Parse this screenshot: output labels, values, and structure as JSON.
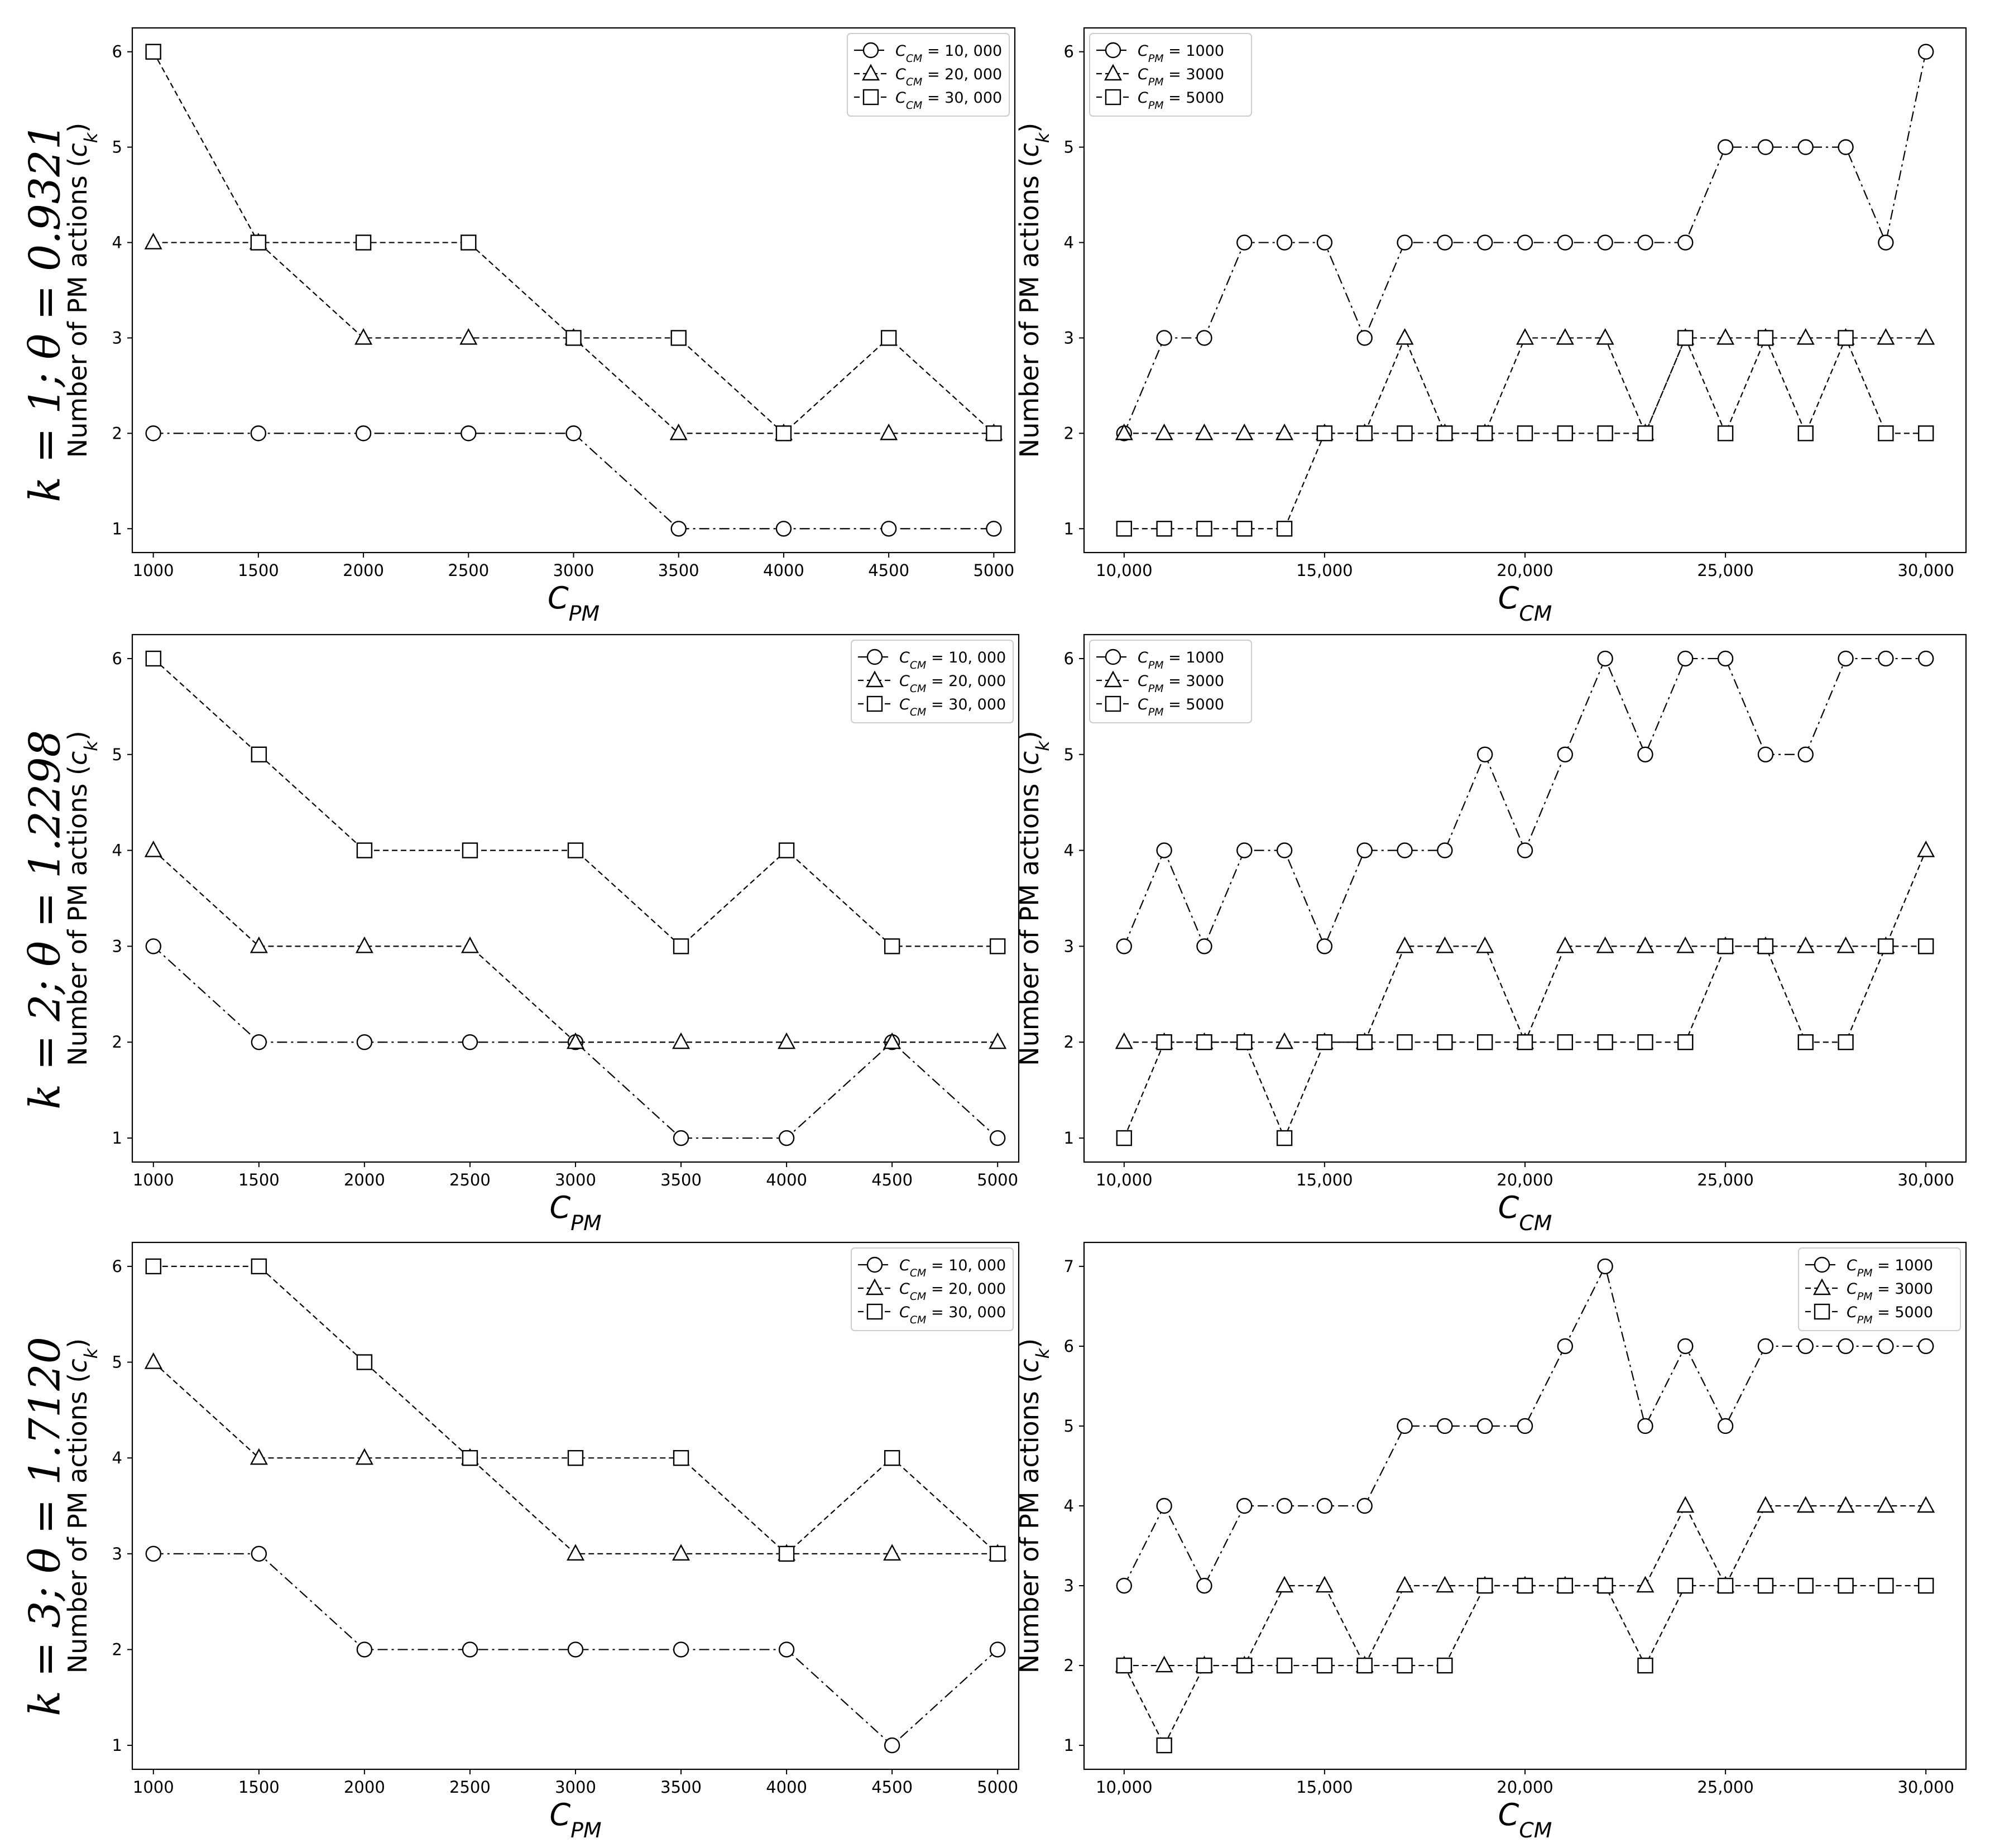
{
  "row_labels": [
    "k = 1; θ = 0.9321",
    "k = 2; θ = 1.2298",
    "k = 3; θ = 1.7120"
  ],
  "chart_data": [
    {
      "type": "line",
      "title": "",
      "xlabel": "C_PM",
      "ylabel": "Number of PM actions (c_k)",
      "x": [
        1000,
        1500,
        2000,
        2500,
        3000,
        3500,
        4000,
        4500,
        5000
      ],
      "xticks": [
        "1000",
        "1500",
        "2000",
        "2500",
        "3000",
        "3500",
        "4000",
        "4500",
        "5000"
      ],
      "xlim": [
        900,
        5100
      ],
      "ylim": [
        0.75,
        6.25
      ],
      "yticks": [
        1,
        2,
        3,
        4,
        5,
        6
      ],
      "grid": false,
      "legend_position": "top-right",
      "series": [
        {
          "name": "C_CM = 10, 000",
          "marker": "circle",
          "dash": "dashdot",
          "values": [
            2,
            2,
            2,
            2,
            2,
            1,
            1,
            1,
            1
          ]
        },
        {
          "name": "C_CM = 20, 000",
          "marker": "triangle",
          "dash": "dashed",
          "values": [
            4,
            4,
            3,
            3,
            3,
            2,
            2,
            2,
            2
          ]
        },
        {
          "name": "C_CM = 30, 000",
          "marker": "square",
          "dash": "dashed",
          "values": [
            6,
            4,
            4,
            4,
            3,
            3,
            2,
            3,
            2
          ]
        }
      ]
    },
    {
      "type": "line",
      "title": "",
      "xlabel": "C_CM",
      "ylabel": "Number of PM actions (c_k)",
      "x": [
        10000,
        11000,
        12000,
        13000,
        14000,
        15000,
        16000,
        17000,
        18000,
        19000,
        20000,
        21000,
        22000,
        23000,
        24000,
        25000,
        26000,
        27000,
        28000,
        29000,
        30000
      ],
      "xticks": [
        "10,000",
        "15,000",
        "20,000",
        "25,000",
        "30,000"
      ],
      "xlim": [
        9000,
        31000
      ],
      "ylim": [
        0.75,
        6.25
      ],
      "yticks": [
        1,
        2,
        3,
        4,
        5,
        6
      ],
      "grid": false,
      "legend_position": "top-left",
      "series": [
        {
          "name": "C_PM = 1000",
          "marker": "circle",
          "dash": "dashdot",
          "values": [
            2,
            3,
            3,
            4,
            4,
            4,
            3,
            4,
            4,
            4,
            4,
            4,
            4,
            4,
            4,
            5,
            5,
            5,
            5,
            4,
            6
          ]
        },
        {
          "name": "C_PM = 3000",
          "marker": "triangle",
          "dash": "dashed",
          "values": [
            2,
            2,
            2,
            2,
            2,
            2,
            2,
            3,
            2,
            2,
            3,
            3,
            3,
            2,
            3,
            3,
            3,
            3,
            3,
            3,
            3
          ]
        },
        {
          "name": "C_PM = 5000",
          "marker": "square",
          "dash": "dashed",
          "values": [
            1,
            1,
            1,
            1,
            1,
            2,
            2,
            2,
            2,
            2,
            2,
            2,
            2,
            2,
            3,
            2,
            3,
            2,
            3,
            2,
            2
          ]
        }
      ]
    },
    {
      "type": "line",
      "title": "",
      "xlabel": "C_PM",
      "ylabel": "Number of PM actions (c_k)",
      "x": [
        1000,
        1500,
        2000,
        2500,
        3000,
        3500,
        4000,
        4500,
        5000
      ],
      "xticks": [
        "1000",
        "1500",
        "2000",
        "2500",
        "3000",
        "3500",
        "4000",
        "4500",
        "5000"
      ],
      "xlim": [
        900,
        5100
      ],
      "ylim": [
        0.75,
        6.25
      ],
      "yticks": [
        1,
        2,
        3,
        4,
        5,
        6
      ],
      "grid": false,
      "legend_position": "top-right",
      "series": [
        {
          "name": "C_CM = 10, 000",
          "marker": "circle",
          "dash": "dashdot",
          "values": [
            3,
            2,
            2,
            2,
            2,
            1,
            1,
            2,
            1
          ]
        },
        {
          "name": "C_CM = 20, 000",
          "marker": "triangle",
          "dash": "dashed",
          "values": [
            4,
            3,
            3,
            3,
            2,
            2,
            2,
            2,
            2
          ]
        },
        {
          "name": "C_CM = 30, 000",
          "marker": "square",
          "dash": "dashed",
          "values": [
            6,
            5,
            4,
            4,
            4,
            3,
            4,
            3,
            3
          ]
        }
      ]
    },
    {
      "type": "line",
      "title": "",
      "xlabel": "C_CM",
      "ylabel": "Number of PM actions (c_k)",
      "x": [
        10000,
        11000,
        12000,
        13000,
        14000,
        15000,
        16000,
        17000,
        18000,
        19000,
        20000,
        21000,
        22000,
        23000,
        24000,
        25000,
        26000,
        27000,
        28000,
        29000,
        30000
      ],
      "xticks": [
        "10,000",
        "15,000",
        "20,000",
        "25,000",
        "30,000"
      ],
      "xlim": [
        9000,
        31000
      ],
      "ylim": [
        0.75,
        6.25
      ],
      "yticks": [
        1,
        2,
        3,
        4,
        5,
        6
      ],
      "grid": false,
      "legend_position": "top-left",
      "series": [
        {
          "name": "C_PM = 1000",
          "marker": "circle",
          "dash": "dashdot",
          "values": [
            3,
            4,
            3,
            4,
            4,
            3,
            4,
            4,
            4,
            5,
            4,
            5,
            6,
            5,
            6,
            6,
            5,
            5,
            6,
            6,
            6
          ]
        },
        {
          "name": "C_PM = 3000",
          "marker": "triangle",
          "dash": "dashed",
          "values": [
            2,
            2,
            2,
            2,
            2,
            2,
            2,
            3,
            3,
            3,
            2,
            3,
            3,
            3,
            3,
            3,
            3,
            3,
            3,
            3,
            4
          ]
        },
        {
          "name": "C_PM = 5000",
          "marker": "square",
          "dash": "dashed",
          "values": [
            1,
            2,
            2,
            2,
            1,
            2,
            2,
            2,
            2,
            2,
            2,
            2,
            2,
            2,
            2,
            3,
            3,
            2,
            2,
            3,
            3
          ]
        }
      ]
    },
    {
      "type": "line",
      "title": "",
      "xlabel": "C_PM",
      "ylabel": "Number of PM actions (c_k)",
      "x": [
        1000,
        1500,
        2000,
        2500,
        3000,
        3500,
        4000,
        4500,
        5000
      ],
      "xticks": [
        "1000",
        "1500",
        "2000",
        "2500",
        "3000",
        "3500",
        "4000",
        "4500",
        "5000"
      ],
      "xlim": [
        900,
        5100
      ],
      "ylim": [
        0.75,
        6.25
      ],
      "yticks": [
        1,
        2,
        3,
        4,
        5,
        6
      ],
      "grid": false,
      "legend_position": "top-right",
      "series": [
        {
          "name": "C_CM = 10, 000",
          "marker": "circle",
          "dash": "dashdot",
          "values": [
            3,
            3,
            2,
            2,
            2,
            2,
            2,
            1,
            2
          ]
        },
        {
          "name": "C_CM = 20, 000",
          "marker": "triangle",
          "dash": "dashed",
          "values": [
            5,
            4,
            4,
            4,
            3,
            3,
            3,
            3,
            3
          ]
        },
        {
          "name": "C_CM = 30, 000",
          "marker": "square",
          "dash": "dashed",
          "values": [
            6,
            6,
            5,
            4,
            4,
            4,
            3,
            4,
            3
          ]
        }
      ]
    },
    {
      "type": "line",
      "title": "",
      "xlabel": "C_CM",
      "ylabel": "Number of PM actions (c_k)",
      "x": [
        10000,
        11000,
        12000,
        13000,
        14000,
        15000,
        16000,
        17000,
        18000,
        19000,
        20000,
        21000,
        22000,
        23000,
        24000,
        25000,
        26000,
        27000,
        28000,
        29000,
        30000
      ],
      "xticks": [
        "10,000",
        "15,000",
        "20,000",
        "25,000",
        "30,000"
      ],
      "xlim": [
        9000,
        31000
      ],
      "ylim": [
        0.7,
        7.3
      ],
      "yticks": [
        1,
        2,
        3,
        4,
        5,
        6,
        7
      ],
      "grid": false,
      "legend_position": "top-right",
      "series": [
        {
          "name": "C_PM = 1000",
          "marker": "circle",
          "dash": "dashdot",
          "values": [
            3,
            4,
            3,
            4,
            4,
            4,
            4,
            5,
            5,
            5,
            5,
            6,
            7,
            5,
            6,
            5,
            6,
            6,
            6,
            6,
            6
          ]
        },
        {
          "name": "C_PM = 3000",
          "marker": "triangle",
          "dash": "dashed",
          "values": [
            2,
            2,
            2,
            2,
            3,
            3,
            2,
            3,
            3,
            3,
            3,
            3,
            3,
            3,
            4,
            3,
            4,
            4,
            4,
            4,
            4
          ]
        },
        {
          "name": "C_PM = 5000",
          "marker": "square",
          "dash": "dashed",
          "values": [
            2,
            1,
            2,
            2,
            2,
            2,
            2,
            2,
            2,
            3,
            3,
            3,
            3,
            2,
            3,
            3,
            3,
            3,
            3,
            3,
            3
          ]
        }
      ]
    }
  ]
}
